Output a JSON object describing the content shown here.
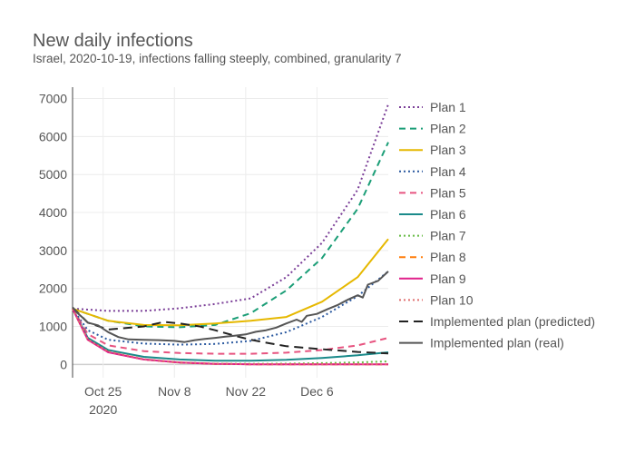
{
  "chart_data": {
    "type": "line",
    "title": "New daily infections",
    "subtitle": "Israel, 2020-10-19, infections falling steeply, combined, granularity 7",
    "xlabel": "",
    "ylabel": "",
    "x_start": "2020-10-19",
    "x_range": [
      "2020-10-19",
      "2020-12-20"
    ],
    "ylim": [
      -350,
      7300
    ],
    "y_ticks": [
      0,
      1000,
      2000,
      3000,
      4000,
      5000,
      6000,
      7000
    ],
    "y_tick_labels": [
      "0",
      "1000",
      "2000",
      "3000",
      "4000",
      "5000",
      "6000",
      "7000"
    ],
    "x_ticks": [
      {
        "date": "2020-10-25",
        "label": "Oct 25",
        "sublabel": "2020"
      },
      {
        "date": "2020-11-08",
        "label": "Nov 8",
        "sublabel": ""
      },
      {
        "date": "2020-11-22",
        "label": "Nov 22",
        "sublabel": ""
      },
      {
        "date": "2020-12-06",
        "label": "Dec 6",
        "sublabel": ""
      }
    ],
    "grid": true,
    "legend_position": "right",
    "series": [
      {
        "name": "Plan 1",
        "color": "#7b3f98",
        "dash": "dot",
        "points": [
          [
            "2020-10-19",
            1470
          ],
          [
            "2020-10-26",
            1410
          ],
          [
            "2020-11-02",
            1410
          ],
          [
            "2020-11-09",
            1480
          ],
          [
            "2020-11-16",
            1590
          ],
          [
            "2020-11-23",
            1740
          ],
          [
            "2020-11-30",
            2300
          ],
          [
            "2020-12-07",
            3200
          ],
          [
            "2020-12-14",
            4600
          ],
          [
            "2020-12-20",
            6850
          ]
        ]
      },
      {
        "name": "Plan 2",
        "color": "#1b9e77",
        "dash": "dash",
        "points": [
          [
            "2020-10-19",
            1470
          ],
          [
            "2020-10-26",
            1150
          ],
          [
            "2020-11-02",
            1000
          ],
          [
            "2020-11-09",
            980
          ],
          [
            "2020-11-16",
            1040
          ],
          [
            "2020-11-23",
            1350
          ],
          [
            "2020-11-30",
            1950
          ],
          [
            "2020-12-07",
            2800
          ],
          [
            "2020-12-14",
            4100
          ],
          [
            "2020-12-20",
            5850
          ]
        ]
      },
      {
        "name": "Plan 3",
        "color": "#e6b800",
        "dash": "solid",
        "points": [
          [
            "2020-10-19",
            1470
          ],
          [
            "2020-10-26",
            1150
          ],
          [
            "2020-11-02",
            1040
          ],
          [
            "2020-11-09",
            1030
          ],
          [
            "2020-11-16",
            1080
          ],
          [
            "2020-11-23",
            1150
          ],
          [
            "2020-11-30",
            1250
          ],
          [
            "2020-12-07",
            1650
          ],
          [
            "2020-12-14",
            2300
          ],
          [
            "2020-12-20",
            3300
          ]
        ]
      },
      {
        "name": "Plan 4",
        "color": "#2c5aa0",
        "dash": "dot",
        "points": [
          [
            "2020-10-19",
            1470
          ],
          [
            "2020-10-22",
            900
          ],
          [
            "2020-10-26",
            650
          ],
          [
            "2020-11-02",
            550
          ],
          [
            "2020-11-09",
            520
          ],
          [
            "2020-11-16",
            540
          ],
          [
            "2020-11-23",
            620
          ],
          [
            "2020-11-30",
            850
          ],
          [
            "2020-12-07",
            1250
          ],
          [
            "2020-12-14",
            1800
          ],
          [
            "2020-12-20",
            2450
          ]
        ]
      },
      {
        "name": "Plan 5",
        "color": "#e75480",
        "dash": "dash",
        "points": [
          [
            "2020-10-19",
            1470
          ],
          [
            "2020-10-22",
            800
          ],
          [
            "2020-10-26",
            500
          ],
          [
            "2020-11-02",
            350
          ],
          [
            "2020-11-09",
            300
          ],
          [
            "2020-11-16",
            280
          ],
          [
            "2020-11-23",
            280
          ],
          [
            "2020-11-30",
            310
          ],
          [
            "2020-12-07",
            380
          ],
          [
            "2020-12-14",
            500
          ],
          [
            "2020-12-20",
            700
          ]
        ]
      },
      {
        "name": "Plan 6",
        "color": "#1a8a8a",
        "dash": "solid",
        "points": [
          [
            "2020-10-19",
            1470
          ],
          [
            "2020-10-22",
            700
          ],
          [
            "2020-10-26",
            380
          ],
          [
            "2020-11-02",
            200
          ],
          [
            "2020-11-09",
            130
          ],
          [
            "2020-11-16",
            100
          ],
          [
            "2020-11-23",
            100
          ],
          [
            "2020-11-30",
            120
          ],
          [
            "2020-12-07",
            170
          ],
          [
            "2020-12-14",
            240
          ],
          [
            "2020-12-20",
            320
          ]
        ]
      },
      {
        "name": "Plan 7",
        "color": "#66bb44",
        "dash": "dot",
        "points": [
          [
            "2020-10-19",
            1470
          ],
          [
            "2020-10-22",
            650
          ],
          [
            "2020-10-26",
            330
          ],
          [
            "2020-11-02",
            130
          ],
          [
            "2020-11-09",
            50
          ],
          [
            "2020-11-16",
            20
          ],
          [
            "2020-11-23",
            15
          ],
          [
            "2020-11-30",
            20
          ],
          [
            "2020-12-07",
            35
          ],
          [
            "2020-12-14",
            55
          ],
          [
            "2020-12-20",
            80
          ]
        ]
      },
      {
        "name": "Plan 8",
        "color": "#ff7f0e",
        "dash": "dash",
        "points": [
          [
            "2020-10-19",
            1470
          ],
          [
            "2020-10-22",
            650
          ],
          [
            "2020-10-26",
            330
          ],
          [
            "2020-11-02",
            130
          ],
          [
            "2020-11-09",
            50
          ],
          [
            "2020-11-16",
            15
          ],
          [
            "2020-11-23",
            5
          ],
          [
            "2020-11-30",
            3
          ],
          [
            "2020-12-07",
            2
          ],
          [
            "2020-12-14",
            2
          ],
          [
            "2020-12-20",
            2
          ]
        ]
      },
      {
        "name": "Plan 9",
        "color": "#e0208a",
        "dash": "solid",
        "points": [
          [
            "2020-10-19",
            1470
          ],
          [
            "2020-10-22",
            650
          ],
          [
            "2020-10-26",
            320
          ],
          [
            "2020-11-02",
            130
          ],
          [
            "2020-11-09",
            50
          ],
          [
            "2020-11-16",
            15
          ],
          [
            "2020-11-23",
            5
          ],
          [
            "2020-11-30",
            2
          ],
          [
            "2020-12-07",
            1
          ],
          [
            "2020-12-14",
            1
          ],
          [
            "2020-12-20",
            1
          ]
        ]
      },
      {
        "name": "Plan 10",
        "color": "#e07070",
        "dash": "dot",
        "points": [
          [
            "2020-10-19",
            1470
          ],
          [
            "2020-10-22",
            660
          ],
          [
            "2020-10-26",
            340
          ],
          [
            "2020-11-02",
            140
          ],
          [
            "2020-11-09",
            55
          ],
          [
            "2020-11-16",
            18
          ],
          [
            "2020-11-23",
            6
          ],
          [
            "2020-11-30",
            3
          ],
          [
            "2020-12-07",
            2
          ],
          [
            "2020-12-14",
            2
          ],
          [
            "2020-12-20",
            2
          ]
        ]
      },
      {
        "name": "Implemented plan (predicted)",
        "color": "#222222",
        "dash": "longdash",
        "points": [
          [
            "2020-10-19",
            1500
          ],
          [
            "2020-10-22",
            1100
          ],
          [
            "2020-10-26",
            920
          ],
          [
            "2020-11-02",
            1000
          ],
          [
            "2020-11-06",
            1120
          ],
          [
            "2020-11-09",
            1080
          ],
          [
            "2020-11-13",
            1000
          ],
          [
            "2020-11-16",
            900
          ],
          [
            "2020-11-20",
            750
          ],
          [
            "2020-11-23",
            650
          ],
          [
            "2020-11-27",
            550
          ],
          [
            "2020-11-30",
            480
          ],
          [
            "2020-12-07",
            400
          ],
          [
            "2020-12-14",
            330
          ],
          [
            "2020-12-20",
            290
          ]
        ]
      },
      {
        "name": "Implemented plan (real)",
        "color": "#555555",
        "dash": "solid",
        "points": [
          [
            "2020-10-19",
            1500
          ],
          [
            "2020-10-20",
            1350
          ],
          [
            "2020-10-21",
            1230
          ],
          [
            "2020-10-22",
            1100
          ],
          [
            "2020-10-24",
            1030
          ],
          [
            "2020-10-26",
            850
          ],
          [
            "2020-10-28",
            720
          ],
          [
            "2020-10-30",
            660
          ],
          [
            "2020-11-02",
            650
          ],
          [
            "2020-11-05",
            640
          ],
          [
            "2020-11-08",
            620
          ],
          [
            "2020-11-10",
            590
          ],
          [
            "2020-11-12",
            640
          ],
          [
            "2020-11-14",
            670
          ],
          [
            "2020-11-16",
            700
          ],
          [
            "2020-11-18",
            730
          ],
          [
            "2020-11-20",
            760
          ],
          [
            "2020-11-22",
            790
          ],
          [
            "2020-11-24",
            860
          ],
          [
            "2020-11-26",
            900
          ],
          [
            "2020-11-28",
            970
          ],
          [
            "2020-11-30",
            1080
          ],
          [
            "2020-12-02",
            1180
          ],
          [
            "2020-12-03",
            1120
          ],
          [
            "2020-12-04",
            1280
          ],
          [
            "2020-12-06",
            1330
          ],
          [
            "2020-12-08",
            1450
          ],
          [
            "2020-12-10",
            1560
          ],
          [
            "2020-12-12",
            1700
          ],
          [
            "2020-12-14",
            1820
          ],
          [
            "2020-12-15",
            1760
          ],
          [
            "2020-12-16",
            2100
          ],
          [
            "2020-12-18",
            2200
          ],
          [
            "2020-12-20",
            2450
          ]
        ]
      }
    ]
  }
}
